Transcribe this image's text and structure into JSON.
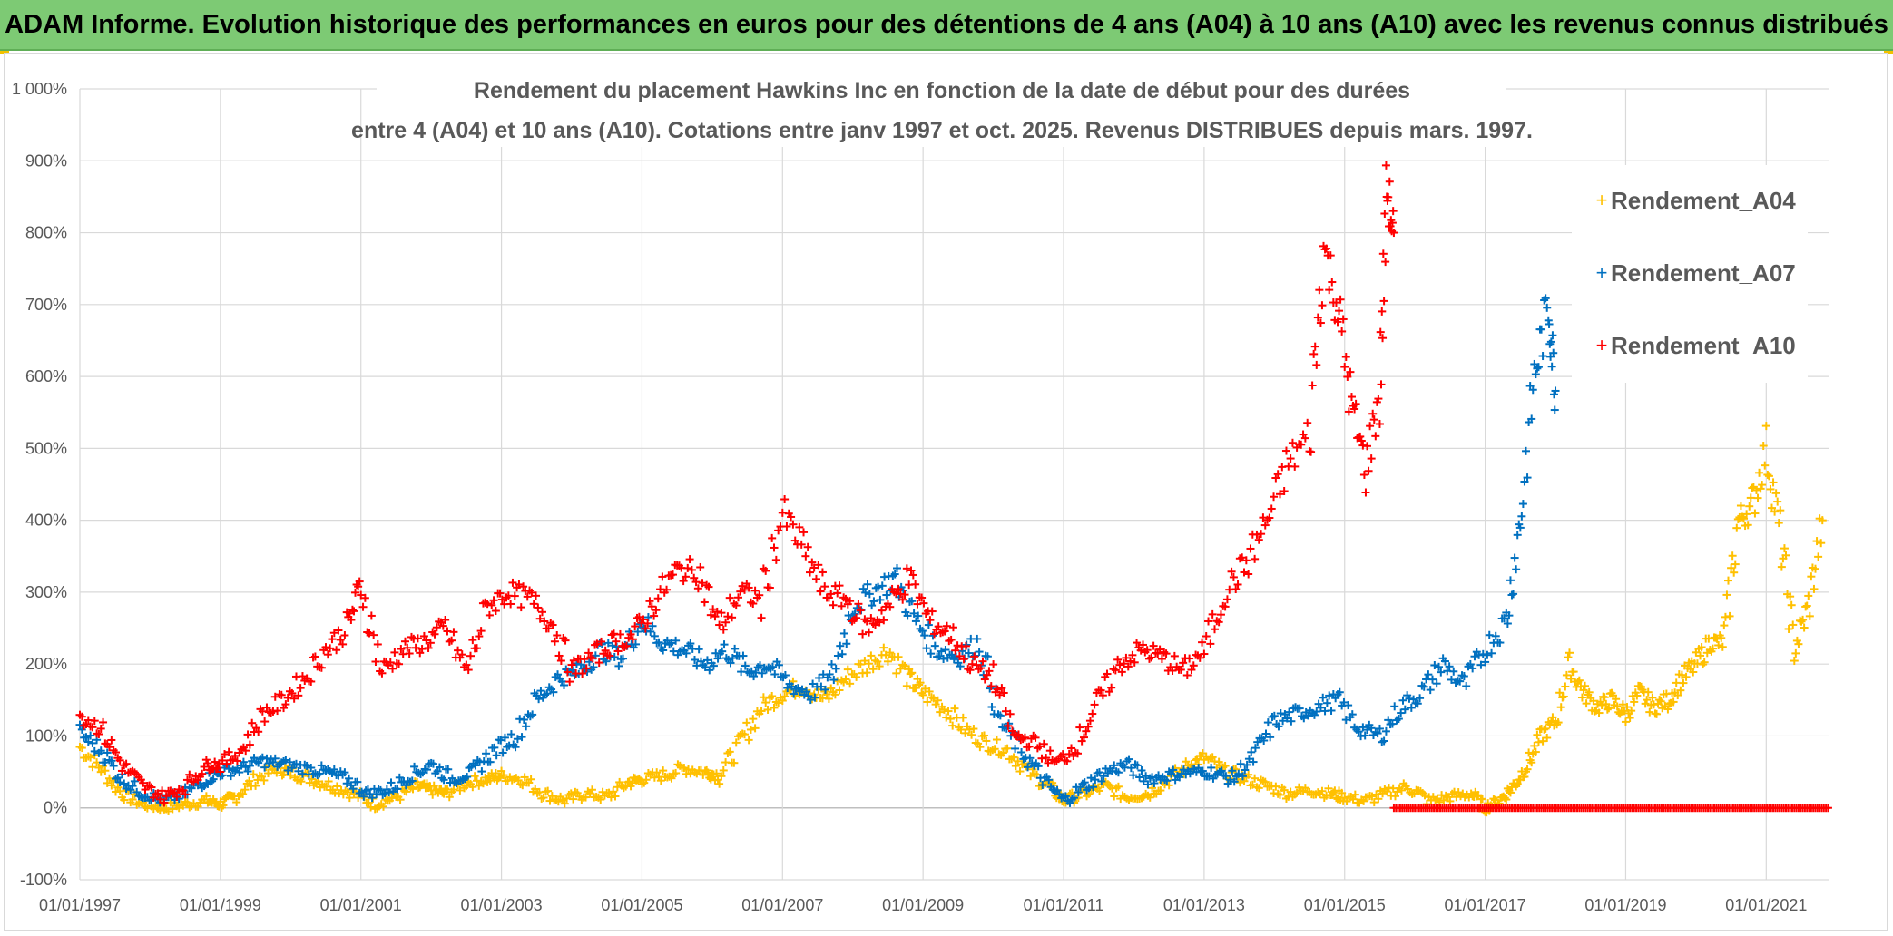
{
  "banner": {
    "title": "ADAM Informe. Evolution historique des performances en euros pour des détentions de 4 ans (A04) à 10 ans (A10) avec les revenus connus distribués"
  },
  "colors": {
    "banner_bg": "#7dca74",
    "A04": "#ffc000",
    "A07": "#0070c0",
    "A10": "#ff0000",
    "grid": "#d9d9d9",
    "text": "#595959"
  },
  "chart_data": {
    "type": "scatter",
    "title_line1": "Rendement du placement Hawkins Inc en fonction de la date de début pour des durées",
    "title_line2": "entre 4 (A04) et 10 ans (A10). Cotations entre janv 1997 et oct. 2025. Revenus DISTRIBUES depuis mars. 1997.",
    "xlabel": "",
    "ylabel": "",
    "x_range": [
      1997.0,
      2021.9
    ],
    "ylim": [
      -100,
      1000
    ],
    "y_ticks": [
      -100,
      0,
      100,
      200,
      300,
      400,
      500,
      600,
      700,
      800,
      900,
      1000
    ],
    "y_tick_labels": [
      "-100%",
      "0%",
      "100%",
      "200%",
      "300%",
      "400%",
      "500%",
      "600%",
      "700%",
      "800%",
      "900%",
      "1 000%"
    ],
    "x_ticks": [
      1997,
      1999,
      2001,
      2003,
      2005,
      2007,
      2009,
      2011,
      2013,
      2015,
      2017,
      2019,
      2021
    ],
    "x_tick_labels": [
      "01/01/1997",
      "01/01/1999",
      "01/01/2001",
      "01/01/2003",
      "01/01/2005",
      "01/01/2007",
      "01/01/2009",
      "01/01/2011",
      "01/01/2013",
      "01/01/2015",
      "01/01/2017",
      "01/01/2019",
      "01/01/2021"
    ],
    "legend": [
      "Rendement_A04",
      "Rendement_A07",
      "Rendement_A10"
    ],
    "legend_position": "right",
    "marker": "+",
    "series": [
      {
        "name": "Rendement_A04",
        "x": [
          1997.0,
          1997.3,
          1997.6,
          1997.9,
          1998.2,
          1998.5,
          1998.8,
          1999.0,
          1999.2,
          1999.5,
          1999.8,
          2000.0,
          2000.3,
          2000.6,
          2000.9,
          2001.2,
          2001.5,
          2001.8,
          2002.0,
          2002.2,
          2002.5,
          2002.8,
          2003.0,
          2003.3,
          2003.6,
          2003.9,
          2004.2,
          2004.5,
          2004.8,
          2005.0,
          2005.3,
          2005.6,
          2005.9,
          2006.1,
          2006.4,
          2006.7,
          2007.0,
          2007.3,
          2007.6,
          2007.9,
          2008.2,
          2008.5,
          2008.8,
          2009.0,
          2009.3,
          2009.6,
          2009.9,
          2010.2,
          2010.5,
          2010.8,
          2011.0,
          2011.3,
          2011.6,
          2011.9,
          2012.2,
          2012.5,
          2012.8,
          2013.0,
          2013.3,
          2013.6,
          2013.9,
          2014.2,
          2014.5,
          2014.8,
          2015.0,
          2015.3,
          2015.6,
          2015.9,
          2016.2,
          2016.5,
          2016.8,
          2017.0,
          2017.2,
          2017.4,
          2017.6,
          2017.8,
          2018.0,
          2018.2,
          2018.4,
          2018.6,
          2018.8,
          2019.0,
          2019.2,
          2019.4,
          2019.6,
          2019.8,
          2020.0,
          2020.2,
          2020.4,
          2020.6,
          2020.8,
          2021.0,
          2021.2,
          2021.4,
          2021.6,
          2021.8
        ],
        "values": [
          85,
          55,
          20,
          5,
          0,
          5,
          10,
          5,
          15,
          40,
          55,
          50,
          40,
          30,
          20,
          5,
          15,
          30,
          25,
          20,
          35,
          40,
          45,
          40,
          20,
          10,
          20,
          15,
          35,
          40,
          45,
          55,
          50,
          45,
          90,
          140,
          160,
          170,
          150,
          180,
          200,
          220,
          180,
          160,
          140,
          110,
          90,
          80,
          50,
          30,
          10,
          20,
          30,
          15,
          20,
          40,
          60,
          70,
          50,
          40,
          30,
          20,
          25,
          20,
          15,
          10,
          20,
          30,
          10,
          15,
          20,
          0,
          10,
          30,
          60,
          100,
          120,
          200,
          160,
          140,
          150,
          130,
          160,
          140,
          150,
          180,
          200,
          230,
          230,
          400,
          420,
          500,
          380,
          220,
          280,
          400
        ]
      },
      {
        "name": "Rendement_A07",
        "x": [
          1997.0,
          1997.3,
          1997.6,
          1997.9,
          1998.2,
          1998.5,
          1998.8,
          1999.0,
          1999.3,
          1999.6,
          1999.9,
          2000.2,
          2000.5,
          2000.8,
          2001.1,
          2001.4,
          2001.7,
          2002.0,
          2002.3,
          2002.6,
          2002.9,
          2003.2,
          2003.5,
          2003.8,
          2004.1,
          2004.4,
          2004.7,
          2005.0,
          2005.3,
          2005.6,
          2005.9,
          2006.2,
          2006.5,
          2006.8,
          2007.1,
          2007.4,
          2007.7,
          2008.0,
          2008.3,
          2008.6,
          2008.9,
          2009.2,
          2009.5,
          2009.8,
          2010.1,
          2010.4,
          2010.7,
          2011.0,
          2011.3,
          2011.6,
          2011.9,
          2012.2,
          2012.5,
          2012.8,
          2013.1,
          2013.4,
          2013.7,
          2014.0,
          2014.3,
          2014.6,
          2014.9,
          2015.2,
          2015.5,
          2015.8,
          2016.1,
          2016.4,
          2016.7,
          2017.0,
          2017.3,
          2017.5,
          2017.7,
          2017.9,
          2018.0
        ],
        "values": [
          105,
          80,
          40,
          20,
          10,
          20,
          40,
          50,
          55,
          65,
          60,
          55,
          50,
          40,
          20,
          25,
          45,
          60,
          40,
          50,
          80,
          100,
          150,
          180,
          190,
          220,
          210,
          260,
          230,
          220,
          200,
          220,
          190,
          200,
          170,
          160,
          180,
          280,
          300,
          320,
          260,
          220,
          210,
          230,
          120,
          80,
          40,
          10,
          30,
          50,
          60,
          40,
          45,
          50,
          50,
          40,
          70,
          120,
          130,
          140,
          150,
          110,
          100,
          140,
          160,
          200,
          170,
          220,
          260,
          400,
          600,
          700,
          580
        ]
      },
      {
        "name": "Rendement_A10",
        "x": [
          1997.0,
          1997.3,
          1997.6,
          1997.9,
          1998.2,
          1998.5,
          1998.8,
          1999.0,
          1999.3,
          1999.6,
          1999.9,
          2000.2,
          2000.5,
          2000.8,
          2001.0,
          2001.3,
          2001.6,
          2001.9,
          2002.2,
          2002.5,
          2002.8,
          2003.1,
          2003.4,
          2003.7,
          2004.0,
          2004.3,
          2004.6,
          2004.9,
          2005.2,
          2005.5,
          2005.8,
          2006.1,
          2006.4,
          2006.7,
          2007.0,
          2007.3,
          2007.6,
          2007.9,
          2008.2,
          2008.5,
          2008.8,
          2009.1,
          2009.4,
          2009.7,
          2010.0,
          2010.3,
          2010.6,
          2010.9,
          2011.2,
          2011.5,
          2011.8,
          2012.1,
          2012.4,
          2012.7,
          2013.0,
          2013.3,
          2013.6,
          2013.9,
          2014.2,
          2014.5,
          2014.7,
          2014.9,
          2015.1,
          2015.3,
          2015.5,
          2015.6,
          2015.7
        ],
        "values": [
          130,
          110,
          60,
          30,
          15,
          30,
          60,
          60,
          80,
          130,
          150,
          180,
          220,
          250,
          310,
          190,
          220,
          230,
          250,
          190,
          280,
          300,
          290,
          260,
          190,
          210,
          230,
          240,
          290,
          330,
          330,
          250,
          300,
          290,
          410,
          360,
          300,
          290,
          250,
          280,
          320,
          260,
          240,
          200,
          180,
          100,
          90,
          60,
          90,
          150,
          200,
          220,
          210,
          190,
          220,
          300,
          340,
          400,
          480,
          520,
          780,
          700,
          560,
          470,
          580,
          860,
          800
        ]
      }
    ],
    "series_A10_flat_tail": {
      "name": "Rendement_A10",
      "x_start": 2015.7,
      "x_end": 2021.9,
      "value": 0
    }
  }
}
